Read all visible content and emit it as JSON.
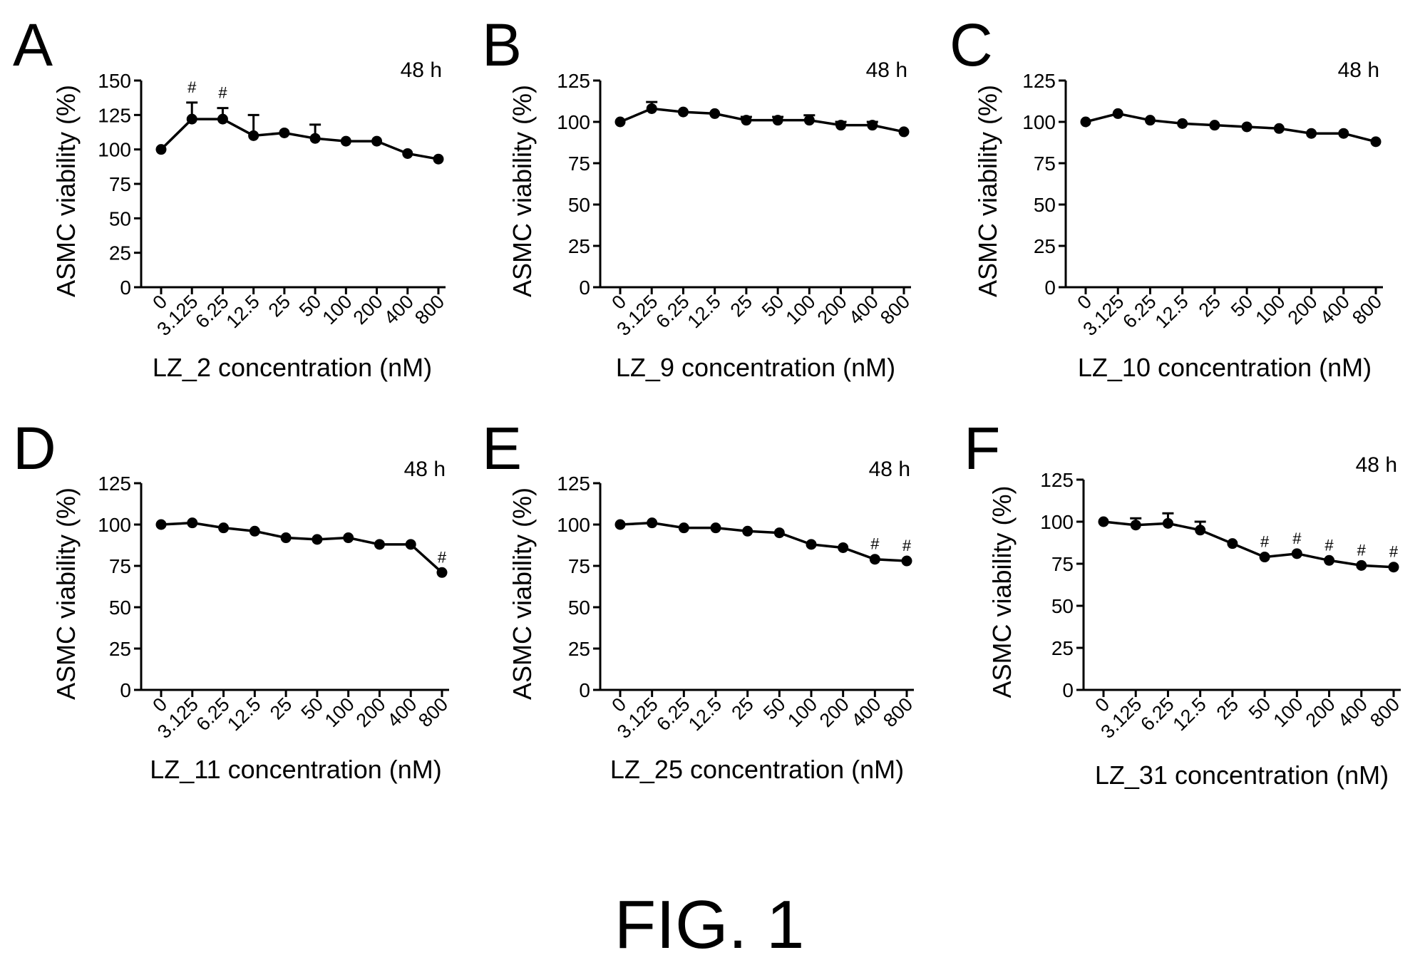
{
  "figure_caption": "FIG. 1",
  "chart_data": [
    {
      "panel": "A",
      "type": "line",
      "time_label": "48 h",
      "ylabel": "ASMC viability (%)",
      "xlabel": "LZ_2 concentration (nM)",
      "categories": [
        "0",
        "3.125",
        "6.25",
        "12.5",
        "25",
        "50",
        "100",
        "200",
        "400",
        "800"
      ],
      "yticks": [
        0,
        25,
        50,
        75,
        100,
        125,
        150
      ],
      "ylim": [
        0,
        150
      ],
      "values": [
        100,
        122,
        122,
        110,
        112,
        108,
        106,
        106,
        97,
        93
      ],
      "error": [
        0,
        12,
        8,
        15,
        0,
        10,
        0,
        0,
        0,
        0
      ],
      "significance": [
        "",
        "#",
        "#",
        "",
        "",
        "",
        "",
        "",
        "",
        ""
      ]
    },
    {
      "panel": "B",
      "type": "line",
      "time_label": "48 h",
      "ylabel": "ASMC viability (%)",
      "xlabel": "LZ_9 concentration (nM)",
      "categories": [
        "0",
        "3.125",
        "6.25",
        "12.5",
        "25",
        "50",
        "100",
        "200",
        "400",
        "800"
      ],
      "yticks": [
        0,
        25,
        50,
        75,
        100,
        125
      ],
      "ylim": [
        0,
        125
      ],
      "values": [
        100,
        108,
        106,
        105,
        101,
        101,
        101,
        98,
        98,
        94
      ],
      "error": [
        0,
        4,
        0,
        0,
        2,
        2,
        3,
        2,
        2,
        0
      ],
      "significance": [
        "",
        "",
        "",
        "",
        "",
        "",
        "",
        "",
        "",
        ""
      ]
    },
    {
      "panel": "C",
      "type": "line",
      "time_label": "48 h",
      "ylabel": "ASMC viability (%)",
      "xlabel": "LZ_10 concentration (nM)",
      "categories": [
        "0",
        "3.125",
        "6.25",
        "12.5",
        "25",
        "50",
        "100",
        "200",
        "400",
        "800"
      ],
      "yticks": [
        0,
        25,
        50,
        75,
        100,
        125
      ],
      "ylim": [
        0,
        125
      ],
      "values": [
        100,
        105,
        101,
        99,
        98,
        97,
        96,
        93,
        93,
        88
      ],
      "error": [
        0,
        0,
        0,
        0,
        0,
        0,
        0,
        0,
        0,
        0
      ],
      "significance": [
        "",
        "",
        "",
        "",
        "",
        "",
        "",
        "",
        "",
        ""
      ]
    },
    {
      "panel": "D",
      "type": "line",
      "time_label": "48 h",
      "ylabel": "ASMC viability (%)",
      "xlabel": "LZ_11 concentration (nM)",
      "categories": [
        "0",
        "3.125",
        "6.25",
        "12.5",
        "25",
        "50",
        "100",
        "200",
        "400",
        "800"
      ],
      "yticks": [
        0,
        25,
        50,
        75,
        100,
        125
      ],
      "ylim": [
        0,
        125
      ],
      "values": [
        100,
        101,
        98,
        96,
        92,
        91,
        92,
        88,
        88,
        71
      ],
      "error": [
        0,
        0,
        0,
        0,
        0,
        0,
        0,
        0,
        0,
        0
      ],
      "significance": [
        "",
        "",
        "",
        "",
        "",
        "",
        "",
        "",
        "",
        "#"
      ]
    },
    {
      "panel": "E",
      "type": "line",
      "time_label": "48 h",
      "ylabel": "ASMC viability (%)",
      "xlabel": "LZ_25 concentration (nM)",
      "categories": [
        "0",
        "3.125",
        "6.25",
        "12.5",
        "25",
        "50",
        "100",
        "200",
        "400",
        "800"
      ],
      "yticks": [
        0,
        25,
        50,
        75,
        100,
        125
      ],
      "ylim": [
        0,
        125
      ],
      "values": [
        100,
        101,
        98,
        98,
        96,
        95,
        88,
        86,
        79,
        78
      ],
      "error": [
        0,
        0,
        0,
        0,
        0,
        0,
        0,
        0,
        0,
        0
      ],
      "significance": [
        "",
        "",
        "",
        "",
        "",
        "",
        "",
        "",
        "#",
        "#"
      ]
    },
    {
      "panel": "F",
      "type": "line",
      "time_label": "48 h",
      "ylabel": "ASMC viability (%)",
      "xlabel": "LZ_31 concentration (nM)",
      "categories": [
        "0",
        "3.125",
        "6.25",
        "12.5",
        "25",
        "50",
        "100",
        "200",
        "400",
        "800"
      ],
      "yticks": [
        0,
        25,
        50,
        75,
        100,
        125
      ],
      "ylim": [
        0,
        125
      ],
      "values": [
        100,
        98,
        99,
        95,
        87,
        79,
        81,
        77,
        74,
        73
      ],
      "error": [
        0,
        4,
        6,
        5,
        0,
        0,
        0,
        0,
        0,
        0
      ],
      "significance": [
        "",
        "",
        "",
        "",
        "",
        "#",
        "#",
        "#",
        "#",
        "#"
      ]
    }
  ]
}
